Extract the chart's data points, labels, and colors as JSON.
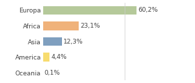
{
  "categories": [
    "Europa",
    "Africa",
    "Asia",
    "America",
    "Oceania"
  ],
  "values": [
    60.2,
    23.1,
    12.3,
    4.4,
    0.1
  ],
  "labels": [
    "60,2%",
    "23,1%",
    "12,3%",
    "4,4%",
    "0,1%"
  ],
  "bar_colors": [
    "#b5c99a",
    "#f0b27a",
    "#7f9fbf",
    "#f7dc6f",
    "#f5cba7"
  ],
  "background_color": "#ffffff",
  "xlim": [
    0,
    75
  ],
  "label_fontsize": 6.5,
  "tick_fontsize": 6.5,
  "bar_height": 0.55
}
